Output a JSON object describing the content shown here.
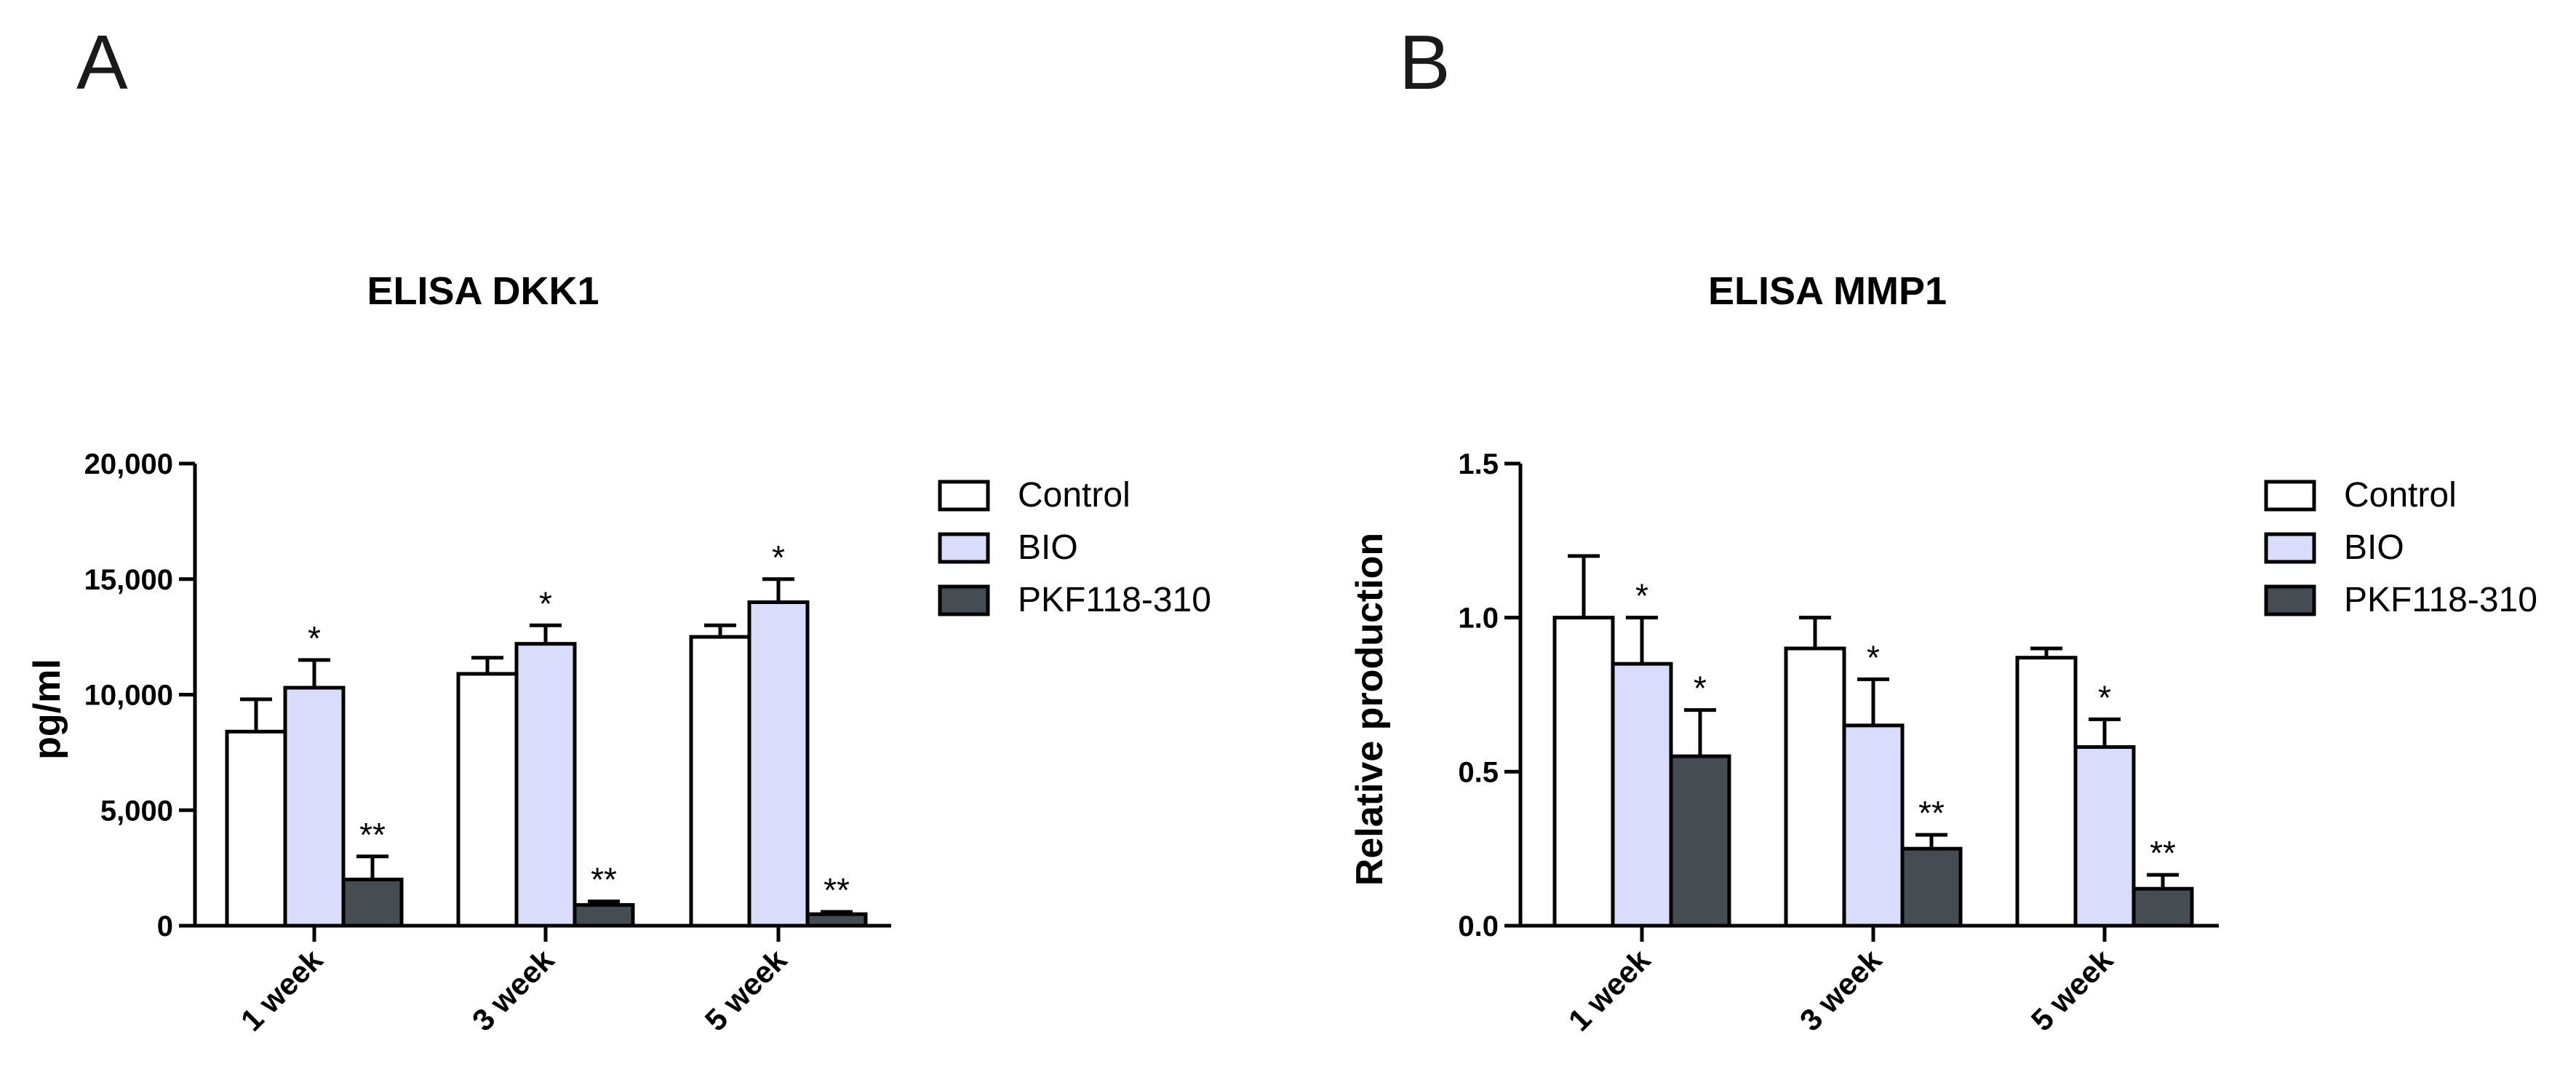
{
  "chart_data": [
    {
      "panel_label": "A",
      "type": "bar",
      "title": "ELISA DKK1",
      "xlabel": "",
      "ylabel": "pg/ml",
      "ylim": [
        0,
        20000
      ],
      "yticks": [
        0,
        5000,
        10000,
        15000,
        20000
      ],
      "ytick_labels": [
        "0",
        "5,000",
        "10,000",
        "15,000",
        "20,000"
      ],
      "categories": [
        "1 week",
        "3 week",
        "5 week"
      ],
      "series": [
        {
          "name": "Control",
          "values": [
            8400,
            10900,
            12500
          ],
          "errors": [
            1400,
            700,
            500
          ],
          "significance": [
            "",
            "",
            ""
          ]
        },
        {
          "name": "BIO",
          "values": [
            10300,
            12200,
            14000
          ],
          "errors": [
            1200,
            800,
            1000
          ],
          "significance": [
            "*",
            "*",
            "*"
          ]
        },
        {
          "name": "PKF118-310",
          "values": [
            2000,
            900,
            500
          ],
          "errors": [
            1000,
            150,
            100
          ],
          "significance": [
            "**",
            "**",
            "**"
          ]
        }
      ],
      "legend_position": "right"
    },
    {
      "panel_label": "B",
      "type": "bar",
      "title": "ELISA MMP1",
      "xlabel": "",
      "ylabel": "Relative production",
      "ylim": [
        0,
        1.5
      ],
      "yticks": [
        0,
        0.5,
        1.0,
        1.5
      ],
      "ytick_labels": [
        "0.0",
        "0.5",
        "1.0",
        "1.5"
      ],
      "categories": [
        "1 week",
        "3 week",
        "5 week"
      ],
      "series": [
        {
          "name": "Control",
          "values": [
            1.0,
            0.9,
            0.87
          ],
          "errors": [
            0.2,
            0.1,
            0.03
          ],
          "significance": [
            "",
            "",
            ""
          ]
        },
        {
          "name": "BIO",
          "values": [
            0.85,
            0.65,
            0.58
          ],
          "errors": [
            0.15,
            0.15,
            0.09
          ],
          "significance": [
            "*",
            "*",
            "*"
          ]
        },
        {
          "name": "PKF118-310",
          "values": [
            0.55,
            0.25,
            0.12
          ],
          "errors": [
            0.15,
            0.045,
            0.045
          ],
          "significance": [
            "*",
            "**",
            "**"
          ]
        }
      ],
      "legend_position": "right"
    }
  ],
  "colors": {
    "Control": "#ffffff",
    "BIO": "#d9dcfa",
    "PKF118-310": "#454c52",
    "stroke": "#000000"
  }
}
